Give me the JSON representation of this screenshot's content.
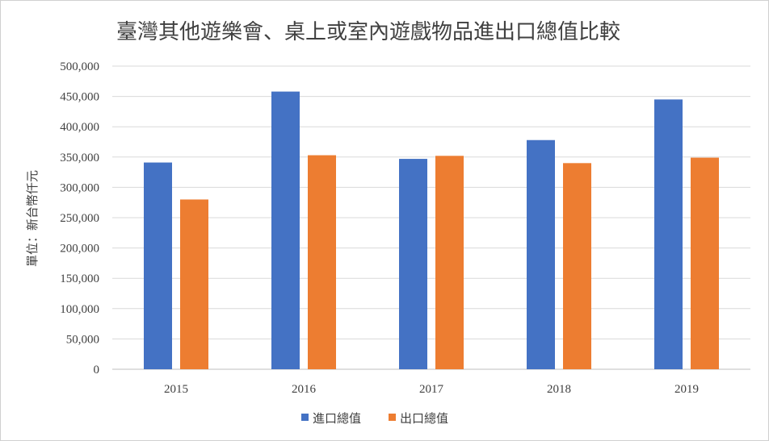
{
  "chart_data": {
    "type": "bar",
    "title": "臺灣其他遊樂會、桌上或室內遊戲物品進出口總值比較",
    "ylabel": "單位：新台幣仟元",
    "xlabel": "",
    "categories": [
      "2015",
      "2016",
      "2017",
      "2018",
      "2019"
    ],
    "series": [
      {
        "name": "進口總值",
        "color": "#4472C4",
        "values": [
          341000,
          458000,
          347000,
          378000,
          445000
        ]
      },
      {
        "name": "出口總值",
        "color": "#ED7D31",
        "values": [
          280000,
          353000,
          352000,
          340000,
          349000
        ]
      }
    ],
    "ylim": [
      0,
      500000
    ],
    "yticks": [
      "0",
      "50,000",
      "100,000",
      "150,000",
      "200,000",
      "250,000",
      "300,000",
      "350,000",
      "400,000",
      "450,000",
      "500,000"
    ],
    "grid": true,
    "legend_position": "bottom"
  }
}
